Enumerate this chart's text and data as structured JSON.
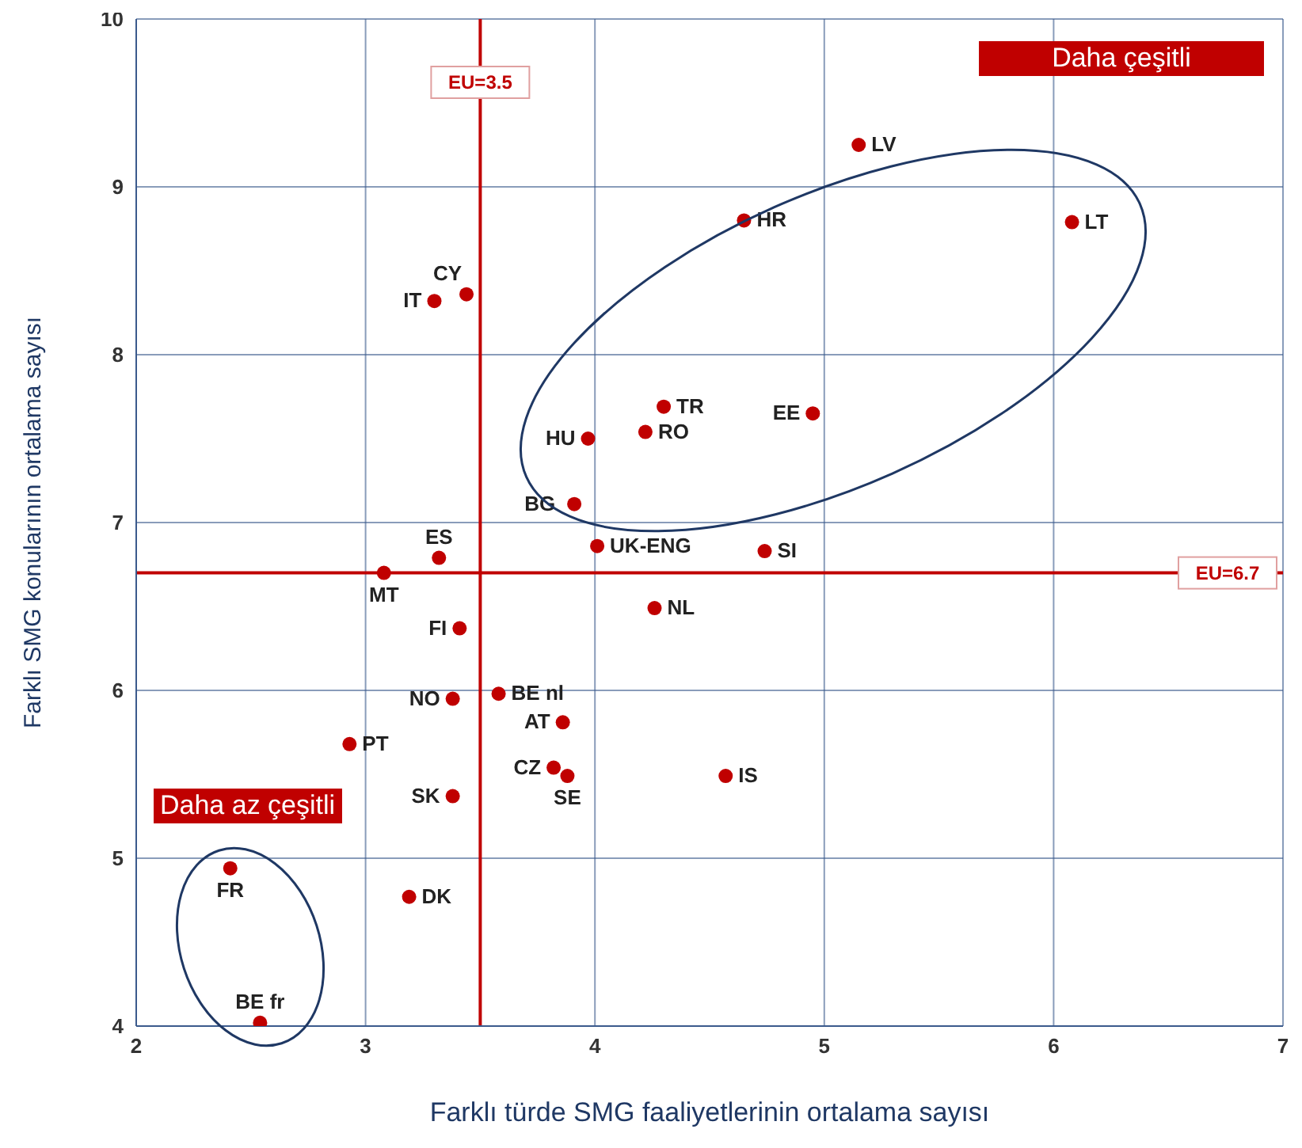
{
  "chart_data": {
    "type": "scatter",
    "xlabel": "Farklı türde SMG faaliyetlerinin ortalama sayısı",
    "ylabel": "Farklı SMG konularının ortalama sayısı",
    "annotations": [
      "Daha çeşitli",
      "Daha az çeşitli"
    ],
    "x": [
      5.15,
      4.65,
      6.08,
      3.44,
      3.3,
      4.3,
      4.95,
      3.97,
      4.22,
      3.91,
      4.01,
      4.74,
      3.32,
      3.08,
      4.26,
      3.41,
      3.38,
      3.58,
      3.86,
      2.93,
      4.57,
      3.82,
      3.88,
      3.38,
      2.41,
      3.19,
      2.54
    ],
    "values": [
      9.25,
      8.8,
      8.79,
      8.36,
      8.32,
      7.69,
      7.65,
      7.5,
      7.54,
      7.11,
      6.86,
      6.83,
      6.79,
      6.7,
      6.49,
      6.37,
      5.95,
      5.98,
      5.81,
      5.68,
      5.49,
      5.54,
      5.49,
      5.37,
      4.94,
      4.77,
      4.02
    ],
    "value_labels": [
      "LV",
      "HR",
      "LT",
      "CY",
      "IT",
      "TR",
      "EE",
      "HU",
      "RO",
      "BG",
      "UK-ENG",
      "SI",
      "ES",
      "MT",
      "NL",
      "FI",
      "NO",
      "BE nl",
      "AT",
      "PT",
      "IS",
      "CZ",
      "SE",
      "SK",
      "FR",
      "DK",
      "BE fr"
    ],
    "color": "#c00000",
    "marker": "circle",
    "xlim": [
      2,
      7
    ],
    "xticks": [
      2,
      3,
      4,
      5,
      6,
      7
    ],
    "ylim": [
      4,
      10
    ],
    "yticks": [
      4,
      5,
      6,
      7,
      8,
      9,
      10
    ],
    "grid": true,
    "ref_lines": [
      {
        "axis": "x",
        "value": 3.5,
        "label": "EU=3.5",
        "color": "#c00000"
      },
      {
        "axis": "y",
        "value": 6.7,
        "label": "EU=6.7",
        "color": "#c00000"
      }
    ]
  }
}
